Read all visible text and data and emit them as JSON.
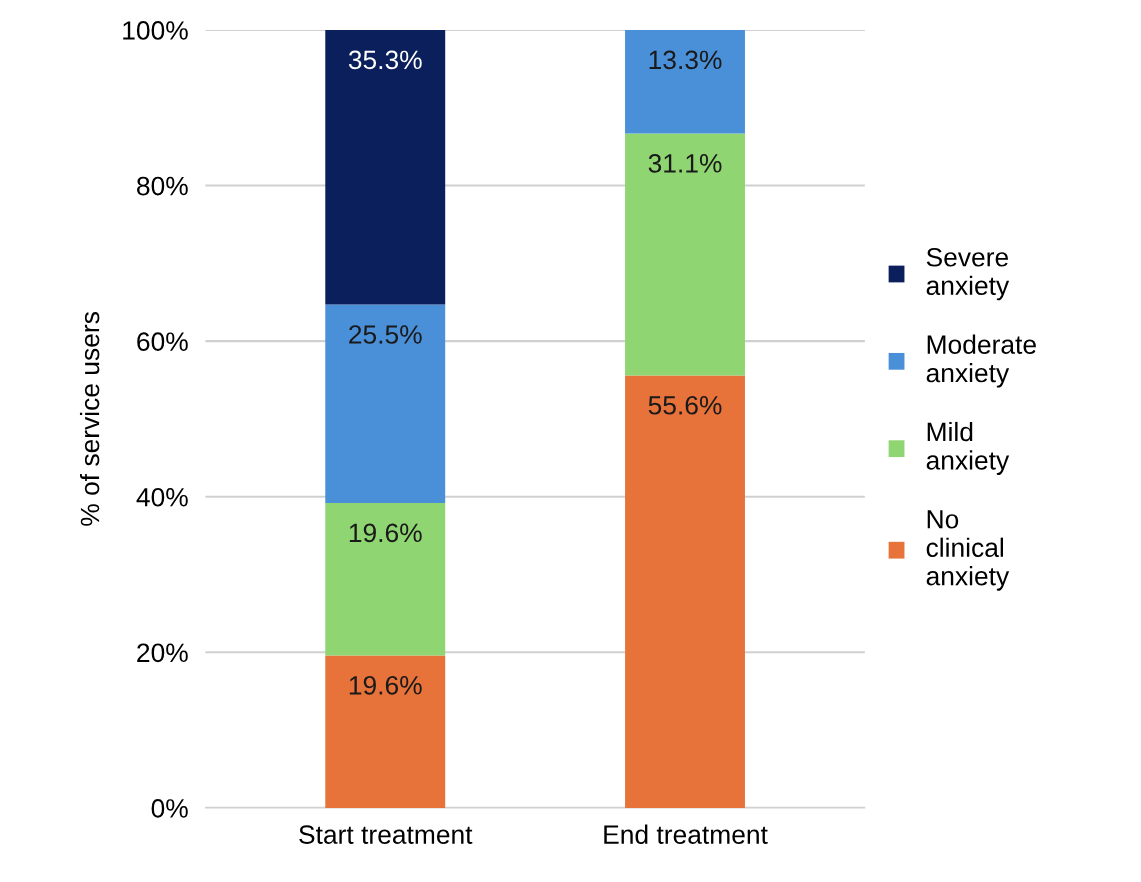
{
  "chart_data": {
    "type": "bar",
    "stacked": true,
    "ylabel": "% of service users",
    "categories": [
      "Start treatment",
      "End treatment"
    ],
    "series": [
      {
        "name": "No clinical anxiety",
        "color": "#e8733a",
        "values": [
          19.6,
          55.6
        ],
        "value_labels": [
          "19.6%",
          "55.6%"
        ]
      },
      {
        "name": "Mild anxiety",
        "color": "#8fd672",
        "values": [
          19.6,
          31.1
        ],
        "value_labels": [
          "19.6%",
          "31.1%"
        ]
      },
      {
        "name": "Moderate anxiety",
        "color": "#4a90d9",
        "values": [
          25.5,
          13.3
        ],
        "value_labels": [
          "25.5%",
          "13.3%"
        ]
      },
      {
        "name": "Severe anxiety",
        "color": "#0b1f5c",
        "values": [
          35.3,
          null
        ],
        "value_labels": [
          "35.3%",
          null
        ]
      }
    ],
    "ylim": [
      0,
      100
    ],
    "yticks": [
      {
        "value": 0,
        "label": "0%"
      },
      {
        "value": 20,
        "label": "20%"
      },
      {
        "value": 40,
        "label": "40%"
      },
      {
        "value": 60,
        "label": "60%"
      },
      {
        "value": 80,
        "label": "80%"
      },
      {
        "value": 100,
        "label": "100%"
      }
    ],
    "grid": "y",
    "legend": "right"
  }
}
